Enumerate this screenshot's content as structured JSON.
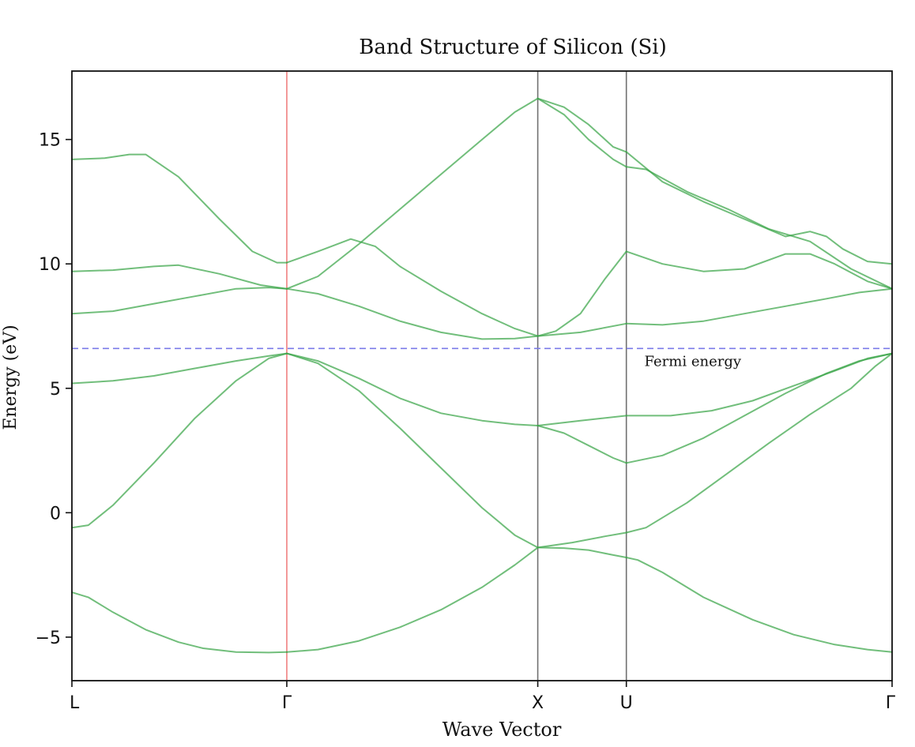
{
  "chart_data": {
    "type": "line",
    "title": "Band Structure of Silicon (Si)",
    "xlabel": "Wave Vector",
    "ylabel": "Energy (eV)",
    "ylim": [
      -6.75,
      17.75
    ],
    "yticks": [
      -5,
      0,
      5,
      10,
      15
    ],
    "ytick_labels": [
      "−5",
      "0",
      "5",
      "10",
      "15"
    ],
    "grid": false,
    "x_domain": [
      0,
      1
    ],
    "kpoints": [
      {
        "label": "L",
        "x": 0.0
      },
      {
        "label": "Γ",
        "x": 0.262
      },
      {
        "label": "X",
        "x": 0.568
      },
      {
        "label": "U",
        "x": 0.676
      },
      {
        "label": "Γ",
        "x": 1.0
      }
    ],
    "vlines": [
      {
        "x": 0.262,
        "color": "#f08080"
      },
      {
        "x": 0.568,
        "color": "#707070"
      },
      {
        "x": 0.676,
        "color": "#707070"
      }
    ],
    "fermi_energy": {
      "y": 6.6,
      "label": "Fermi energy",
      "color": "#7b7be8",
      "label_x": 0.698,
      "label_y": 5.9
    },
    "band_color": "#3aa548",
    "series": [
      {
        "x": [
          0,
          0.02,
          0.05,
          0.09,
          0.13,
          0.16,
          0.2,
          0.24,
          0.262
        ],
        "values": [
          -3.2,
          -3.4,
          -4.0,
          -4.7,
          -5.2,
          -5.45,
          -5.6,
          -5.62,
          -5.6
        ]
      },
      {
        "x": [
          0.262,
          0.3,
          0.35,
          0.4,
          0.45,
          0.5,
          0.54,
          0.568
        ],
        "values": [
          -5.6,
          -5.5,
          -5.15,
          -4.6,
          -3.9,
          -3.0,
          -2.1,
          -1.4
        ]
      },
      {
        "x": [
          0.568,
          0.6,
          0.63,
          0.66,
          0.676
        ],
        "values": [
          -1.4,
          -1.42,
          -1.5,
          -1.7,
          -1.8
        ]
      },
      {
        "x": [
          0.676,
          0.69,
          0.72,
          0.77,
          0.83,
          0.88,
          0.93,
          0.97,
          1.0
        ],
        "values": [
          -1.8,
          -1.9,
          -2.4,
          -3.4,
          -4.3,
          -4.9,
          -5.3,
          -5.5,
          -5.6
        ]
      },
      {
        "x": [
          0,
          0.02,
          0.05,
          0.1,
          0.15,
          0.2,
          0.24,
          0.262
        ],
        "values": [
          -0.6,
          -0.5,
          0.3,
          2.0,
          3.8,
          5.3,
          6.2,
          6.4
        ]
      },
      {
        "x": [
          0.262,
          0.3,
          0.35,
          0.4,
          0.45,
          0.5,
          0.54,
          0.568
        ],
        "values": [
          6.4,
          6.0,
          4.9,
          3.4,
          1.8,
          0.2,
          -0.9,
          -1.4
        ]
      },
      {
        "x": [
          0.568,
          0.61,
          0.65,
          0.676
        ],
        "values": [
          -1.4,
          -1.2,
          -0.95,
          -0.8
        ]
      },
      {
        "x": [
          0.676,
          0.7,
          0.75,
          0.8,
          0.85,
          0.9,
          0.95,
          0.98,
          1.0
        ],
        "values": [
          -0.8,
          -0.6,
          0.4,
          1.6,
          2.8,
          3.95,
          5.0,
          5.9,
          6.4
        ]
      },
      {
        "x": [
          0,
          0.05,
          0.1,
          0.15,
          0.2,
          0.24,
          0.262
        ],
        "values": [
          5.2,
          5.3,
          5.5,
          5.8,
          6.1,
          6.3,
          6.4
        ]
      },
      {
        "x": [
          0.262,
          0.3,
          0.35,
          0.4,
          0.45,
          0.5,
          0.54,
          0.568
        ],
        "values": [
          6.4,
          6.1,
          5.4,
          4.6,
          4.0,
          3.7,
          3.55,
          3.5
        ]
      },
      {
        "x": [
          0.568,
          0.6,
          0.63,
          0.66,
          0.676
        ],
        "values": [
          3.5,
          3.2,
          2.7,
          2.2,
          2.0
        ]
      },
      {
        "x": [
          0.676,
          0.72,
          0.77,
          0.82,
          0.87,
          0.92,
          0.96,
          1.0
        ],
        "values": [
          2.0,
          2.3,
          3.0,
          3.9,
          4.8,
          5.6,
          6.1,
          6.4
        ]
      },
      {
        "x": [
          0.568,
          0.62,
          0.676
        ],
        "values": [
          3.5,
          3.7,
          3.9
        ]
      },
      {
        "x": [
          0.676,
          0.73,
          0.78,
          0.83,
          0.88,
          0.93,
          0.97,
          1.0
        ],
        "values": [
          3.9,
          3.9,
          4.1,
          4.5,
          5.1,
          5.7,
          6.2,
          6.4
        ]
      },
      {
        "x": [
          0,
          0.05,
          0.1,
          0.15,
          0.2,
          0.24,
          0.262
        ],
        "values": [
          8.0,
          8.1,
          8.4,
          8.7,
          9.0,
          9.05,
          9.0
        ]
      },
      {
        "x": [
          0.262,
          0.3,
          0.35,
          0.4,
          0.45,
          0.5,
          0.54,
          0.568
        ],
        "values": [
          9.0,
          8.8,
          8.3,
          7.7,
          7.25,
          6.98,
          7.0,
          7.1
        ]
      },
      {
        "x": [
          0.568,
          0.62,
          0.676
        ],
        "values": [
          7.1,
          7.25,
          7.6
        ]
      },
      {
        "x": [
          0.676,
          0.72,
          0.77,
          0.82,
          0.87,
          0.92,
          0.96,
          1.0
        ],
        "values": [
          7.6,
          7.55,
          7.7,
          8.0,
          8.3,
          8.6,
          8.85,
          9.0
        ]
      },
      {
        "x": [
          0,
          0.05,
          0.1,
          0.13,
          0.18,
          0.23,
          0.262
        ],
        "values": [
          9.7,
          9.75,
          9.9,
          9.95,
          9.6,
          9.15,
          9.0
        ]
      },
      {
        "x": [
          0.262,
          0.3,
          0.35,
          0.4,
          0.45,
          0.5,
          0.54,
          0.568
        ],
        "values": [
          9.0,
          9.5,
          10.8,
          12.2,
          13.6,
          15.0,
          16.1,
          16.65
        ]
      },
      {
        "x": [
          0.568,
          0.6,
          0.63,
          0.66,
          0.676
        ],
        "values": [
          16.65,
          16.3,
          15.6,
          14.7,
          14.5
        ]
      },
      {
        "x": [
          0.676,
          0.72,
          0.77,
          0.82,
          0.87,
          0.9,
          0.92,
          0.94,
          0.97,
          1.0
        ],
        "values": [
          14.5,
          13.3,
          12.5,
          11.8,
          11.1,
          11.3,
          11.1,
          10.6,
          10.1,
          10.0
        ]
      },
      {
        "x": [
          0.568,
          0.6,
          0.63,
          0.66,
          0.676
        ],
        "values": [
          16.65,
          16.0,
          15.0,
          14.2,
          13.9
        ]
      },
      {
        "x": [
          0.676,
          0.7,
          0.75,
          0.8,
          0.85,
          0.9,
          0.95,
          1.0
        ],
        "values": [
          13.9,
          13.8,
          12.9,
          12.2,
          11.4,
          10.9,
          9.8,
          9.0
        ]
      },
      {
        "x": [
          0,
          0.04,
          0.07,
          0.09,
          0.13,
          0.18,
          0.22,
          0.25,
          0.262
        ],
        "values": [
          14.2,
          14.25,
          14.4,
          14.4,
          13.5,
          11.8,
          10.5,
          10.05,
          10.05
        ]
      },
      {
        "x": [
          0.262,
          0.3,
          0.34,
          0.37,
          0.4,
          0.45,
          0.5,
          0.54,
          0.568
        ],
        "values": [
          10.05,
          10.5,
          11.0,
          10.7,
          9.9,
          8.9,
          8.0,
          7.4,
          7.1
        ]
      },
      {
        "x": [
          0.568,
          0.59,
          0.62,
          0.65,
          0.676
        ],
        "values": [
          7.1,
          7.3,
          8.0,
          9.4,
          10.5
        ]
      },
      {
        "x": [
          0.676,
          0.72,
          0.77,
          0.82,
          0.87,
          0.9,
          0.93,
          0.97,
          1.0
        ],
        "values": [
          10.5,
          10.0,
          9.7,
          9.8,
          10.4,
          10.4,
          10.0,
          9.3,
          9.0
        ]
      }
    ]
  }
}
